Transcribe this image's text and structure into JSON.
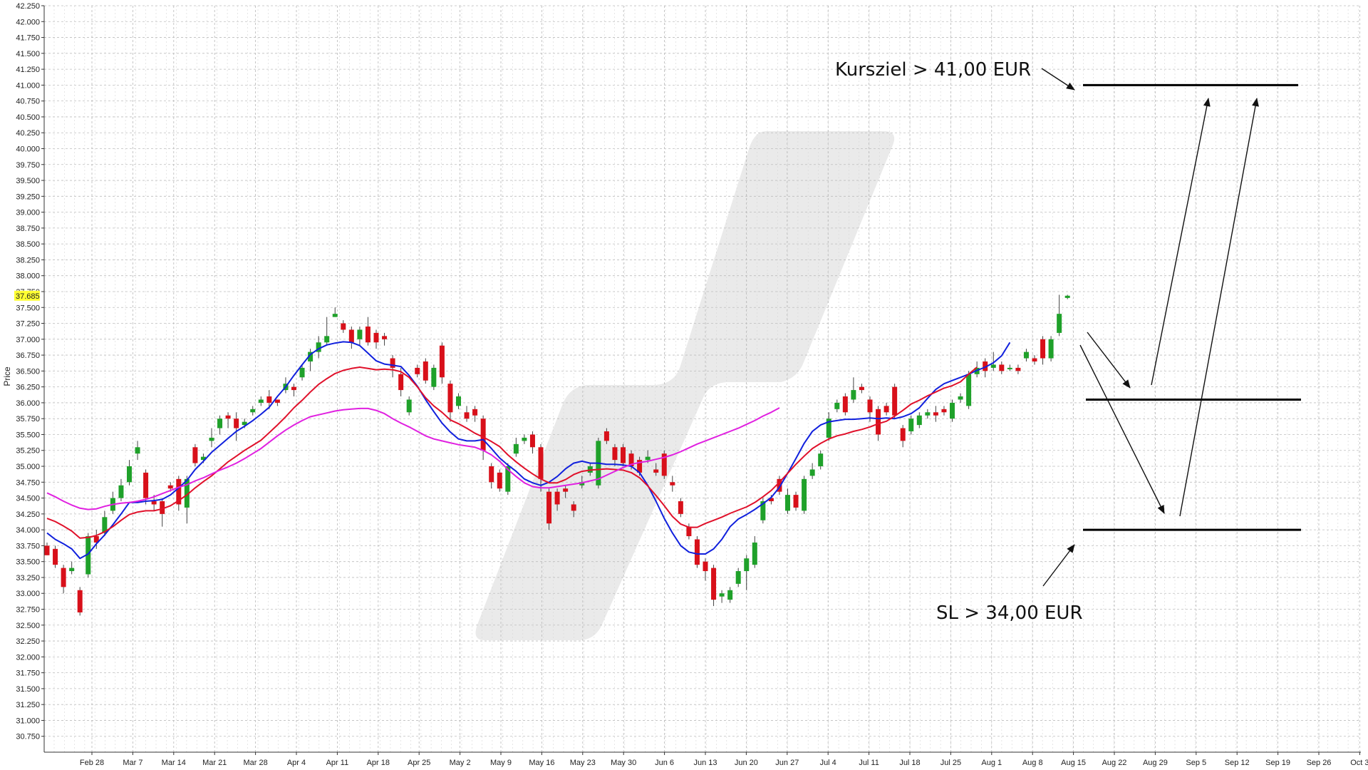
{
  "chart_data": {
    "type": "candlestick",
    "ylabel": "Price",
    "ylim": [
      30.5,
      42.25
    ],
    "yticks": [
      "30.750",
      "31.000",
      "31.250",
      "31.500",
      "31.750",
      "32.000",
      "32.250",
      "32.500",
      "32.750",
      "33.000",
      "33.250",
      "33.500",
      "33.750",
      "34.000",
      "34.250",
      "34.500",
      "34.750",
      "35.000",
      "35.250",
      "35.500",
      "35.750",
      "36.000",
      "36.250",
      "36.500",
      "36.750",
      "37.000",
      "37.250",
      "37.500",
      "37.750",
      "38.000",
      "38.250",
      "38.500",
      "38.750",
      "39.000",
      "39.250",
      "39.500",
      "39.750",
      "40.000",
      "40.250",
      "40.500",
      "40.750",
      "41.000",
      "41.250",
      "41.500",
      "41.750",
      "42.000",
      "42.250"
    ],
    "xticks": [
      "Feb 28",
      "Mar 7",
      "Mar 14",
      "Mar 21",
      "Mar 28",
      "Apr 4",
      "Apr 11",
      "Apr 18",
      "Apr 25",
      "May 2",
      "May 9",
      "May 16",
      "May 23",
      "May 30",
      "Jun 6",
      "Jun 13",
      "Jun 20",
      "Jun 27",
      "Jul 4",
      "Jul 11",
      "Jul 18",
      "Jul 25",
      "Aug 1",
      "Aug 8",
      "Aug 15",
      "Aug 22",
      "Aug 29",
      "Sep 5",
      "Sep 12",
      "Sep 19",
      "Sep 26",
      "Oct 3"
    ],
    "last_price": "37.685",
    "candles": [
      [
        33.75,
        33.6,
        33.8,
        33.6
      ],
      [
        33.7,
        33.45,
        33.75,
        33.4
      ],
      [
        33.4,
        33.1,
        33.45,
        33.0
      ],
      [
        33.35,
        33.4,
        33.5,
        33.3
      ],
      [
        33.05,
        32.7,
        33.1,
        32.65
      ],
      [
        33.3,
        33.9,
        33.95,
        33.25
      ],
      [
        33.9,
        33.8,
        34.0,
        33.7
      ],
      [
        33.95,
        34.2,
        34.3,
        33.9
      ],
      [
        34.3,
        34.5,
        34.6,
        34.25
      ],
      [
        34.5,
        34.7,
        34.8,
        34.45
      ],
      [
        34.75,
        35.0,
        35.1,
        34.7
      ],
      [
        35.2,
        35.3,
        35.4,
        35.1
      ],
      [
        34.9,
        34.5,
        34.95,
        34.4
      ],
      [
        34.45,
        34.4,
        34.55,
        34.3
      ],
      [
        34.45,
        34.25,
        34.5,
        34.05
      ],
      [
        34.7,
        34.65,
        34.75,
        34.6
      ],
      [
        34.8,
        34.4,
        34.85,
        34.3
      ],
      [
        34.35,
        34.8,
        34.85,
        34.1
      ],
      [
        35.3,
        35.05,
        35.35,
        35.0
      ],
      [
        35.1,
        35.15,
        35.2,
        35.05
      ],
      [
        35.4,
        35.45,
        35.6,
        35.3
      ],
      [
        35.6,
        35.75,
        35.8,
        35.5
      ],
      [
        35.8,
        35.75,
        35.85,
        35.6
      ],
      [
        35.75,
        35.6,
        35.85,
        35.4
      ],
      [
        35.65,
        35.7,
        35.75,
        35.6
      ],
      [
        35.85,
        35.9,
        35.95,
        35.8
      ],
      [
        36.0,
        36.05,
        36.1,
        35.95
      ],
      [
        36.1,
        36.0,
        36.2,
        35.9
      ],
      [
        36.05,
        36.0,
        36.05,
        35.95
      ],
      [
        36.2,
        36.3,
        36.4,
        36.15
      ],
      [
        36.25,
        36.2,
        36.3,
        36.1
      ],
      [
        36.4,
        36.55,
        36.6,
        36.35
      ],
      [
        36.65,
        36.8,
        36.85,
        36.5
      ],
      [
        36.8,
        36.95,
        37.05,
        36.7
      ],
      [
        36.95,
        37.05,
        37.35,
        36.9
      ],
      [
        37.35,
        37.4,
        37.5,
        37.35
      ],
      [
        37.25,
        37.15,
        37.3,
        37.1
      ],
      [
        37.15,
        36.95,
        37.2,
        36.85
      ],
      [
        37.0,
        37.15,
        37.2,
        36.9
      ],
      [
        37.2,
        36.95,
        37.35,
        36.9
      ],
      [
        37.1,
        36.95,
        37.15,
        36.85
      ],
      [
        37.05,
        37.0,
        37.1,
        36.9
      ],
      [
        36.7,
        36.55,
        36.75,
        36.4
      ],
      [
        36.45,
        36.2,
        36.55,
        36.1
      ],
      [
        35.85,
        36.05,
        36.1,
        35.8
      ],
      [
        36.55,
        36.45,
        36.6,
        36.4
      ],
      [
        36.65,
        36.35,
        36.7,
        36.3
      ],
      [
        36.25,
        36.55,
        36.6,
        36.2
      ],
      [
        36.9,
        36.4,
        36.95,
        36.3
      ],
      [
        36.3,
        35.85,
        36.35,
        35.7
      ],
      [
        35.95,
        36.1,
        36.15,
        35.9
      ],
      [
        35.85,
        35.75,
        35.95,
        35.7
      ],
      [
        35.9,
        35.8,
        35.95,
        35.7
      ],
      [
        35.75,
        35.25,
        35.8,
        35.1
      ],
      [
        35.0,
        34.75,
        35.05,
        34.65
      ],
      [
        34.9,
        34.65,
        34.95,
        34.6
      ],
      [
        34.6,
        35.0,
        35.05,
        34.55
      ],
      [
        35.2,
        35.35,
        35.45,
        35.15
      ],
      [
        35.4,
        35.45,
        35.5,
        35.35
      ],
      [
        35.5,
        35.3,
        35.55,
        35.2
      ],
      [
        35.3,
        34.8,
        35.35,
        34.6
      ],
      [
        34.6,
        34.1,
        34.65,
        34.0
      ],
      [
        34.6,
        34.4,
        34.65,
        34.3
      ],
      [
        34.65,
        34.6,
        34.7,
        34.5
      ],
      [
        34.4,
        34.3,
        34.45,
        34.2
      ],
      [
        34.7,
        34.75,
        34.85,
        34.65
      ],
      [
        34.9,
        35.0,
        35.05,
        34.85
      ],
      [
        34.7,
        35.4,
        35.45,
        34.65
      ],
      [
        35.55,
        35.4,
        35.6,
        35.35
      ],
      [
        35.3,
        35.1,
        35.35,
        35.0
      ],
      [
        35.3,
        35.05,
        35.35,
        35.0
      ],
      [
        35.2,
        35.0,
        35.25,
        34.95
      ],
      [
        35.1,
        34.9,
        35.15,
        34.85
      ],
      [
        35.1,
        35.15,
        35.25,
        35.05
      ],
      [
        34.95,
        34.9,
        35.05,
        34.85
      ],
      [
        35.2,
        34.85,
        35.25,
        34.8
      ],
      [
        34.75,
        34.7,
        34.85,
        34.6
      ],
      [
        34.45,
        34.25,
        34.5,
        34.2
      ],
      [
        34.05,
        33.9,
        34.1,
        33.85
      ],
      [
        33.85,
        33.45,
        33.9,
        33.4
      ],
      [
        33.5,
        33.35,
        33.55,
        33.2
      ],
      [
        33.4,
        32.9,
        33.45,
        32.8
      ],
      [
        32.95,
        33.0,
        33.05,
        32.85
      ],
      [
        32.9,
        33.05,
        33.1,
        32.85
      ],
      [
        33.15,
        33.35,
        33.4,
        33.1
      ],
      [
        33.35,
        33.55,
        33.6,
        33.05
      ],
      [
        33.45,
        33.8,
        33.9,
        33.4
      ],
      [
        34.15,
        34.45,
        34.5,
        34.1
      ],
      [
        34.5,
        34.45,
        34.55,
        34.4
      ],
      [
        34.8,
        34.6,
        34.85,
        34.55
      ],
      [
        34.3,
        34.55,
        34.65,
        34.25
      ],
      [
        34.55,
        34.35,
        34.6,
        34.3
      ],
      [
        34.3,
        34.8,
        34.85,
        34.25
      ],
      [
        34.85,
        34.95,
        35.05,
        34.8
      ],
      [
        35.0,
        35.2,
        35.25,
        34.95
      ],
      [
        35.45,
        35.75,
        35.85,
        35.4
      ],
      [
        35.9,
        36.0,
        36.05,
        35.85
      ],
      [
        36.1,
        35.85,
        36.15,
        35.8
      ],
      [
        36.05,
        36.2,
        36.4,
        36.0
      ],
      [
        36.25,
        36.2,
        36.3,
        36.15
      ],
      [
        36.05,
        35.85,
        36.1,
        35.7
      ],
      [
        35.9,
        35.5,
        35.95,
        35.4
      ],
      [
        35.95,
        35.85,
        36.0,
        35.8
      ],
      [
        36.25,
        35.8,
        36.3,
        35.75
      ],
      [
        35.6,
        35.4,
        35.65,
        35.3
      ],
      [
        35.55,
        35.75,
        35.8,
        35.5
      ],
      [
        35.65,
        35.8,
        35.85,
        35.6
      ],
      [
        35.8,
        35.85,
        35.9,
        35.75
      ],
      [
        35.85,
        35.8,
        35.95,
        35.7
      ],
      [
        35.9,
        35.85,
        35.95,
        35.8
      ],
      [
        35.75,
        36.0,
        36.05,
        35.7
      ],
      [
        36.05,
        36.1,
        36.15,
        36.0
      ],
      [
        35.95,
        36.45,
        36.5,
        35.9
      ],
      [
        36.45,
        36.55,
        36.65,
        36.4
      ],
      [
        36.65,
        36.5,
        36.7,
        36.4
      ],
      [
        36.55,
        36.6,
        36.8,
        36.5
      ],
      [
        36.6,
        36.5,
        36.65,
        36.45
      ],
      [
        36.55,
        36.55,
        36.6,
        36.5
      ],
      [
        36.55,
        36.5,
        36.6,
        36.45
      ],
      [
        36.7,
        36.8,
        36.85,
        36.65
      ],
      [
        36.7,
        36.65,
        36.75,
        36.6
      ],
      [
        37.0,
        36.7,
        37.05,
        36.6
      ],
      [
        36.7,
        37.0,
        37.05,
        36.65
      ],
      [
        37.1,
        37.4,
        37.7,
        37.05
      ],
      [
        37.65,
        37.685,
        37.7,
        37.63
      ]
    ],
    "series": [
      {
        "name": "",
        "color": "#1020dd",
        "values": [
          33.95,
          33.85,
          33.78,
          33.7,
          33.55,
          33.62,
          33.78,
          33.92,
          34.08,
          34.25,
          34.43,
          34.43,
          34.45,
          34.46,
          34.48,
          34.55,
          34.66,
          34.78,
          34.95,
          35.08,
          35.22,
          35.33,
          35.44,
          35.55,
          35.63,
          35.72,
          35.82,
          35.93,
          36.1,
          36.25,
          36.43,
          36.6,
          36.76,
          36.85,
          36.91,
          36.94,
          36.96,
          36.95,
          36.9,
          36.78,
          36.66,
          36.61,
          36.59,
          36.57,
          36.43,
          36.26,
          36.05,
          35.86,
          35.68,
          35.54,
          35.43,
          35.4,
          35.4,
          35.42,
          35.28,
          35.13,
          35.02,
          34.92,
          34.8,
          34.74,
          34.7,
          34.75,
          34.84,
          34.96,
          35.05,
          35.08,
          35.05,
          35.05,
          35.03,
          35.03,
          35.02,
          35.0,
          34.9,
          34.7,
          34.45,
          34.18,
          33.95,
          33.75,
          33.65,
          33.62,
          33.62,
          33.7,
          33.85,
          34.05,
          34.17,
          34.24,
          34.32,
          34.41,
          34.51,
          34.67,
          34.89,
          35.12,
          35.36,
          35.55,
          35.65,
          35.7,
          35.72,
          35.74,
          35.74,
          35.75,
          35.76,
          35.75,
          35.76,
          35.75,
          35.78,
          35.83,
          35.92,
          36.07,
          36.21,
          36.3,
          36.35,
          36.4,
          36.45,
          36.51,
          36.56,
          36.63,
          36.74,
          36.95
        ]
      },
      {
        "name": "",
        "color": "#e0102a",
        "values": [
          34.18,
          34.13,
          34.06,
          33.98,
          33.87,
          33.88,
          33.91,
          33.97,
          34.05,
          34.15,
          34.24,
          34.28,
          34.3,
          34.3,
          34.33,
          34.38,
          34.46,
          34.55,
          34.66,
          34.76,
          34.85,
          34.96,
          35.07,
          35.16,
          35.25,
          35.33,
          35.41,
          35.53,
          35.65,
          35.78,
          35.92,
          36.04,
          36.17,
          36.29,
          36.38,
          36.46,
          36.51,
          36.54,
          36.56,
          36.54,
          36.52,
          36.53,
          36.52,
          36.49,
          36.4,
          36.25,
          36.08,
          35.95,
          35.85,
          35.73,
          35.67,
          35.6,
          35.52,
          35.46,
          35.39,
          35.31,
          35.18,
          35.07,
          34.97,
          34.88,
          34.8,
          34.74,
          34.74,
          34.79,
          34.87,
          34.92,
          34.94,
          34.95,
          34.96,
          34.95,
          34.94,
          34.9,
          34.82,
          34.69,
          34.54,
          34.38,
          34.21,
          34.09,
          34.04,
          34.04,
          34.1,
          34.15,
          34.2,
          34.26,
          34.31,
          34.36,
          34.43,
          34.52,
          34.62,
          34.75,
          34.89,
          35.03,
          35.16,
          35.28,
          35.36,
          35.43,
          35.48,
          35.51,
          35.55,
          35.58,
          35.62,
          35.67,
          35.71,
          35.79,
          35.88,
          35.98,
          36.04,
          36.11,
          36.17,
          36.23,
          36.27,
          36.33,
          36.45,
          36.56
        ]
      },
      {
        "name": "",
        "color": "#e020e0",
        "values": [
          34.58,
          34.52,
          34.45,
          34.39,
          34.34,
          34.32,
          34.33,
          34.37,
          34.4,
          34.42,
          34.43,
          34.45,
          34.48,
          34.52,
          34.57,
          34.62,
          34.67,
          34.71,
          34.77,
          34.82,
          34.88,
          34.94,
          34.99,
          35.05,
          35.12,
          35.2,
          35.28,
          35.38,
          35.48,
          35.57,
          35.65,
          35.72,
          35.78,
          35.81,
          35.84,
          35.87,
          35.89,
          35.9,
          35.91,
          35.91,
          35.88,
          35.83,
          35.75,
          35.68,
          35.62,
          35.55,
          35.48,
          35.43,
          35.4,
          35.37,
          35.34,
          35.32,
          35.3,
          35.25,
          35.18,
          35.08,
          34.95,
          34.84,
          34.74,
          34.68,
          34.66,
          34.66,
          34.68,
          34.7,
          34.72,
          34.74,
          34.77,
          34.8,
          34.86,
          34.92,
          34.98,
          35.03,
          35.06,
          35.08,
          35.11,
          35.14,
          35.18,
          35.23,
          35.29,
          35.35,
          35.4,
          35.45,
          35.5,
          35.55,
          35.6,
          35.66,
          35.72,
          35.79,
          35.85,
          35.92
        ]
      }
    ],
    "levels": [
      {
        "name": "target",
        "value": 41.0,
        "label": "Kursziel > 41,00 EUR"
      },
      {
        "name": "entry",
        "value": 36.05,
        "label": ""
      },
      {
        "name": "stop-loss",
        "value": 34.0,
        "label": "SL > 34,00 EUR"
      }
    ],
    "grid": true,
    "up_color": "#1fa12a",
    "down_color": "#d8101a",
    "highlight_color": "#ffff33"
  }
}
